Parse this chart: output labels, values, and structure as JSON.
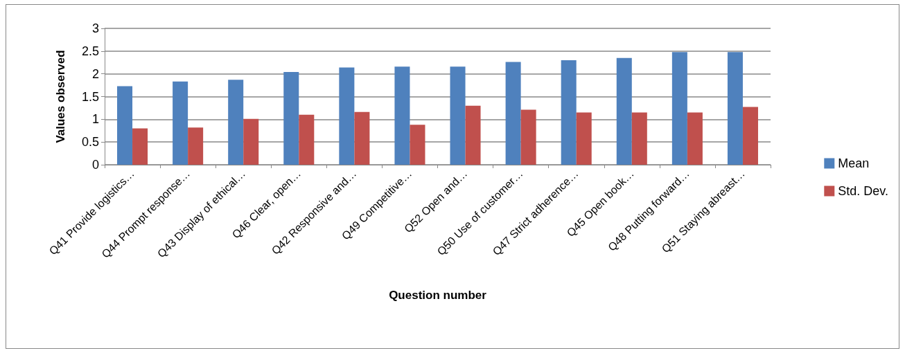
{
  "chart_data": {
    "type": "bar",
    "xlabel": "Question number",
    "ylabel": "Values observed",
    "categories": [
      "Q41 Provide logistics…",
      "Q44 Prompt response…",
      "Q43 Display of ethical…",
      "Q46 Clear, open…",
      "Q42 Responsive and…",
      "Q49 Competitive…",
      "Q52 Open and…",
      "Q50 Use of customer…",
      "Q47 Strict adherence…",
      "Q45 Open book…",
      "Q48 Putting forward…",
      "Q51 Staying abreast…"
    ],
    "series": [
      {
        "name": "Mean",
        "color": "#4f81bd",
        "values": [
          1.73,
          1.83,
          1.87,
          2.04,
          2.14,
          2.16,
          2.16,
          2.26,
          2.3,
          2.35,
          2.48,
          2.48
        ]
      },
      {
        "name": "Std. Dev.",
        "color": "#c0504d",
        "values": [
          0.8,
          0.82,
          1.01,
          1.1,
          1.16,
          0.88,
          1.3,
          1.21,
          1.15,
          1.15,
          1.15,
          1.27
        ]
      }
    ],
    "ylim": [
      0,
      3
    ],
    "yticks": [
      0,
      0.5,
      1,
      1.5,
      2,
      2.5,
      3
    ],
    "grid": "y",
    "legend": "right"
  }
}
